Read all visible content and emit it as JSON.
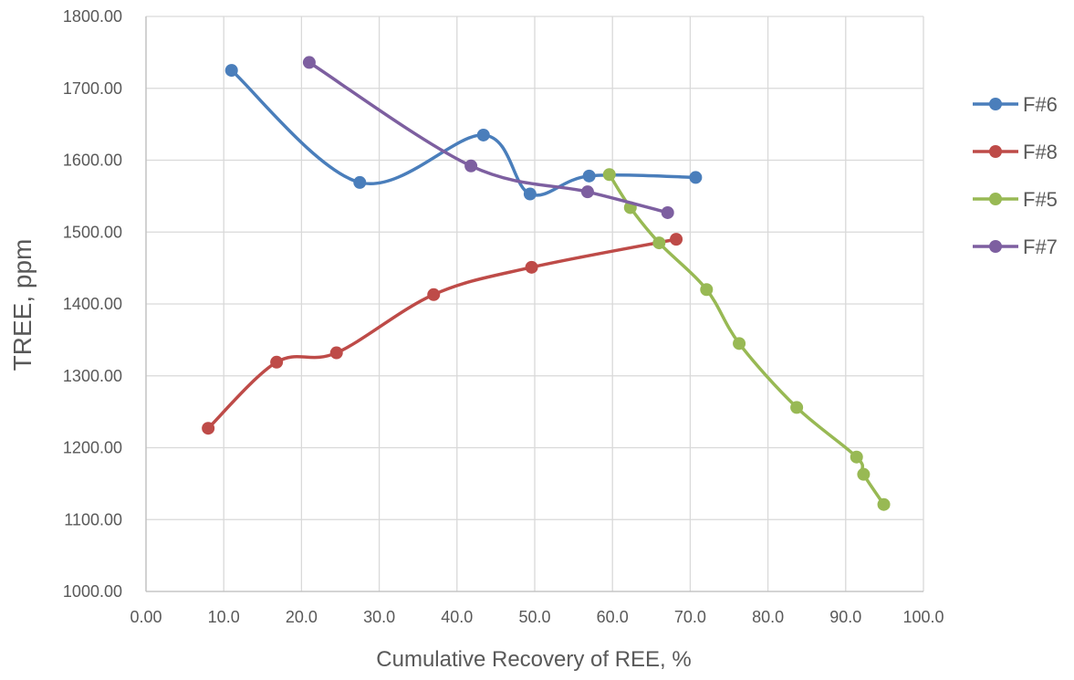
{
  "chart_data": {
    "type": "scatter",
    "mode": "lines-markers-smoothed",
    "title": "",
    "xlabel": "Cumulative Recovery of REE, %",
    "ylabel": "TREE, ppm",
    "xlim": [
      0,
      100
    ],
    "ylim": [
      1000,
      1800
    ],
    "x_ticks": [
      "0.00",
      "10.0",
      "20.0",
      "30.0",
      "40.0",
      "50.0",
      "60.0",
      "70.0",
      "80.0",
      "90.0",
      "100.0"
    ],
    "y_ticks": [
      "1000.00",
      "1100.00",
      "1200.00",
      "1300.00",
      "1400.00",
      "1500.00",
      "1600.00",
      "1700.00",
      "1800.00"
    ],
    "grid": "vertical-and-horizontal",
    "legend_position": "right",
    "series": [
      {
        "name": "F#6",
        "color": "#4a7ebb",
        "smooth": true,
        "points": [
          [
            11.0,
            1725
          ],
          [
            27.5,
            1569
          ],
          [
            43.4,
            1635
          ],
          [
            49.4,
            1553
          ],
          [
            57.0,
            1578
          ],
          [
            70.7,
            1576
          ]
        ]
      },
      {
        "name": "F#8",
        "color": "#be4b48",
        "smooth": true,
        "points": [
          [
            8.0,
            1227
          ],
          [
            16.8,
            1319
          ],
          [
            24.5,
            1332
          ],
          [
            37.0,
            1413
          ],
          [
            49.6,
            1451
          ],
          [
            68.2,
            1490
          ]
        ]
      },
      {
        "name": "F#5",
        "color": "#98b954",
        "smooth": true,
        "points": [
          [
            59.6,
            1580
          ],
          [
            62.3,
            1534
          ],
          [
            66.0,
            1485
          ],
          [
            72.1,
            1420
          ],
          [
            76.3,
            1345
          ],
          [
            83.7,
            1256
          ],
          [
            91.4,
            1187
          ],
          [
            92.3,
            1163
          ],
          [
            94.9,
            1121
          ]
        ]
      },
      {
        "name": "F#7",
        "color": "#7d5fa0",
        "smooth": true,
        "points": [
          [
            21.0,
            1736
          ],
          [
            41.8,
            1592
          ],
          [
            56.8,
            1556
          ],
          [
            67.1,
            1527
          ]
        ]
      }
    ]
  }
}
